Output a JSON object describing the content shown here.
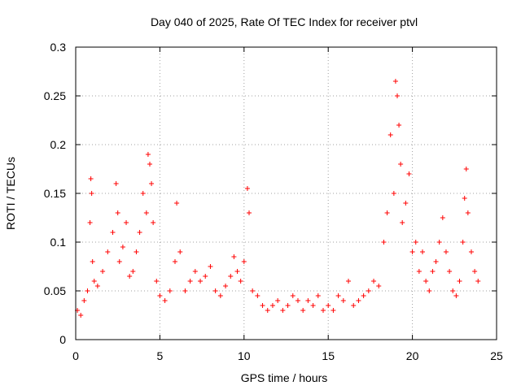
{
  "chart_data": {
    "type": "scatter",
    "title": "Day 040 of 2025, Rate Of TEC Index for receiver ptvl",
    "xlabel": "GPS time / hours",
    "ylabel": "ROTI / TECUs",
    "xlim": [
      0,
      25
    ],
    "ylim": [
      0,
      0.3
    ],
    "x_ticks": [
      0,
      5,
      10,
      15,
      20,
      25
    ],
    "x_tick_labels": [
      "0",
      "5",
      "10",
      "15",
      "20",
      "25"
    ],
    "y_ticks": [
      0,
      0.05,
      0.1,
      0.15,
      0.2,
      0.25,
      0.3
    ],
    "y_tick_labels": [
      "0",
      "0.05",
      "0.1",
      "0.15",
      "0.2",
      "0.25",
      "0.3"
    ],
    "grid": true,
    "marker": "+",
    "marker_color": "#ff0000",
    "series": [
      {
        "name": "ROTI",
        "x": [
          0.1,
          0.3,
          0.5,
          0.7,
          0.85,
          0.9,
          0.95,
          1.0,
          1.1,
          1.3,
          1.6,
          1.9,
          2.2,
          2.4,
          2.5,
          2.6,
          2.8,
          3.0,
          3.2,
          3.4,
          3.6,
          3.8,
          4.0,
          4.2,
          4.3,
          4.4,
          4.5,
          4.6,
          4.8,
          5.0,
          5.3,
          5.6,
          5.9,
          6.0,
          6.2,
          6.5,
          6.8,
          7.1,
          7.4,
          7.7,
          8.0,
          8.3,
          8.6,
          8.9,
          9.2,
          9.4,
          9.6,
          9.8,
          10.0,
          10.2,
          10.3,
          10.5,
          10.8,
          11.1,
          11.4,
          11.7,
          12.0,
          12.3,
          12.6,
          12.9,
          13.2,
          13.5,
          13.8,
          14.1,
          14.4,
          14.7,
          15.0,
          15.3,
          15.6,
          15.9,
          16.2,
          16.5,
          16.8,
          17.1,
          17.4,
          17.7,
          18.0,
          18.3,
          18.5,
          18.7,
          18.9,
          19.0,
          19.1,
          19.2,
          19.3,
          19.4,
          19.6,
          19.8,
          20.0,
          20.2,
          20.4,
          20.6,
          20.8,
          21.0,
          21.2,
          21.4,
          21.6,
          21.8,
          22.0,
          22.2,
          22.4,
          22.6,
          22.8,
          23.0,
          23.1,
          23.2,
          23.3,
          23.5,
          23.7,
          23.9
        ],
        "y": [
          0.03,
          0.025,
          0.04,
          0.05,
          0.12,
          0.165,
          0.15,
          0.08,
          0.06,
          0.055,
          0.07,
          0.09,
          0.11,
          0.16,
          0.13,
          0.08,
          0.095,
          0.12,
          0.065,
          0.07,
          0.09,
          0.11,
          0.15,
          0.13,
          0.19,
          0.18,
          0.16,
          0.12,
          0.06,
          0.045,
          0.04,
          0.05,
          0.08,
          0.14,
          0.09,
          0.05,
          0.06,
          0.07,
          0.06,
          0.065,
          0.075,
          0.05,
          0.045,
          0.055,
          0.065,
          0.085,
          0.07,
          0.06,
          0.08,
          0.155,
          0.13,
          0.05,
          0.045,
          0.035,
          0.03,
          0.035,
          0.04,
          0.03,
          0.035,
          0.045,
          0.04,
          0.03,
          0.04,
          0.035,
          0.045,
          0.03,
          0.035,
          0.03,
          0.045,
          0.04,
          0.06,
          0.035,
          0.04,
          0.045,
          0.05,
          0.06,
          0.055,
          0.1,
          0.13,
          0.21,
          0.15,
          0.265,
          0.25,
          0.22,
          0.18,
          0.12,
          0.14,
          0.17,
          0.09,
          0.1,
          0.07,
          0.09,
          0.06,
          0.05,
          0.07,
          0.08,
          0.1,
          0.125,
          0.09,
          0.07,
          0.05,
          0.045,
          0.06,
          0.1,
          0.145,
          0.175,
          0.13,
          0.09,
          0.07,
          0.06
        ]
      }
    ]
  }
}
